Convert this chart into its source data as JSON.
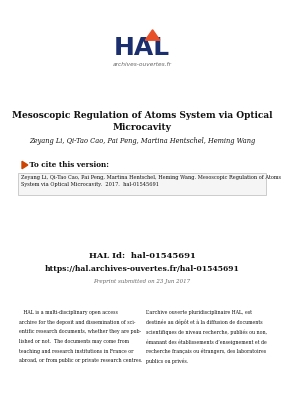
{
  "bg_color": "#ffffff",
  "title_line1": "Mesoscopic Regulation of Atoms System via Optical",
  "title_line2": "Microcavity",
  "authors": "Zeyang Li, Qi-Tao Cao, Pai Peng, Martina Hentschel, Heming Wang",
  "cite_header": "► To cite this version:",
  "cite_text": "Zeyang Li, Qi-Tao Cao, Pai Peng, Martina Hentschel, Heming Wang. Mesoscopic Regulation of Atoms\nSystem via Optical Microcavity.  2017.  hal-01545691",
  "hal_id_label": "HAL Id:  hal-01545691",
  "hal_url": "https://hal.archives-ouvertes.fr/hal-01545691",
  "preprint_date": "Preprint submitted on 23 Jun 2017",
  "hal_text_left": "   HAL is a multi-disciplinary open access\narchive for the deposit and dissemination of sci-\nentific research documents, whether they are pub-\nlished or not.  The documents may come from\nteaching and research institutions in France or\nabroad, or from public or private research centres.",
  "hal_text_right": "L’archive ouverte pluridisciplinaire HAL, est\ndestinée au dépôt et à la diffusion de documents\nscientifiques de niveau recherche, publiés ou non,\némanant des établissements d’enseignement et de\nrecherche français ou étrangers, des laboratoires\npublics ou privés.",
  "hal_logo_color": "#1b2e6e",
  "hal_orange": "#e8502a",
  "arrow_color": "#cc4400",
  "text_color": "#111111",
  "gray_text": "#666666"
}
